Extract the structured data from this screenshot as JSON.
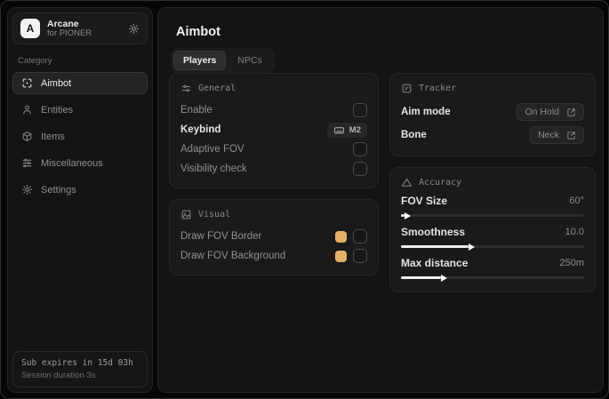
{
  "sidebar": {
    "brand": {
      "letter": "A",
      "name": "Arcane",
      "subtitle": "for PIONER"
    },
    "category_label": "Category",
    "items": [
      {
        "label": "Aimbot",
        "icon": "crosshair-icon",
        "active": true
      },
      {
        "label": "Entities",
        "icon": "person-icon",
        "active": false
      },
      {
        "label": "Items",
        "icon": "cube-icon",
        "active": false
      },
      {
        "label": "Miscellaneous",
        "icon": "filter-icon",
        "active": false
      },
      {
        "label": "Settings",
        "icon": "gear-icon",
        "active": false
      }
    ],
    "footer": {
      "expiry": "Sub expires in 15d 03h",
      "session": "Session duration 3s"
    }
  },
  "main": {
    "title": "Aimbot",
    "tabs": [
      {
        "label": "Players",
        "active": true
      },
      {
        "label": "NPCs",
        "active": false
      }
    ],
    "cards": {
      "general": {
        "title": "General",
        "rows": [
          {
            "label": "Enable",
            "control": "checkbox",
            "checked": false
          },
          {
            "label": "Keybind",
            "control": "keybind",
            "value": "M2"
          },
          {
            "label": "Adaptive FOV",
            "control": "checkbox",
            "checked": false
          },
          {
            "label": "Visibility check",
            "control": "checkbox",
            "checked": false
          }
        ]
      },
      "visual": {
        "title": "Visual",
        "rows": [
          {
            "label": "Draw FOV Border",
            "control": "color-checkbox",
            "swatch": "#e3b269",
            "checked": false
          },
          {
            "label": "Draw FOV Background",
            "control": "color-checkbox",
            "swatch": "#e3b269",
            "checked": false
          }
        ]
      },
      "tracker": {
        "title": "Tracker",
        "rows": [
          {
            "label": "Aim mode",
            "control": "select",
            "value": "On Hold"
          },
          {
            "label": "Bone",
            "control": "select",
            "value": "Neck"
          }
        ]
      },
      "accuracy": {
        "title": "Accuracy",
        "sliders": [
          {
            "label": "FOV Size",
            "value": "60°",
            "percent": 2
          },
          {
            "label": "Smoothness",
            "value": "10.0",
            "percent": 37
          },
          {
            "label": "Max distance",
            "value": "250m",
            "percent": 22
          }
        ]
      }
    }
  },
  "colors": {
    "swatch": "#e3b269",
    "panel": "#141414",
    "card": "#1a1a1a",
    "accent_text": "#ececec"
  }
}
